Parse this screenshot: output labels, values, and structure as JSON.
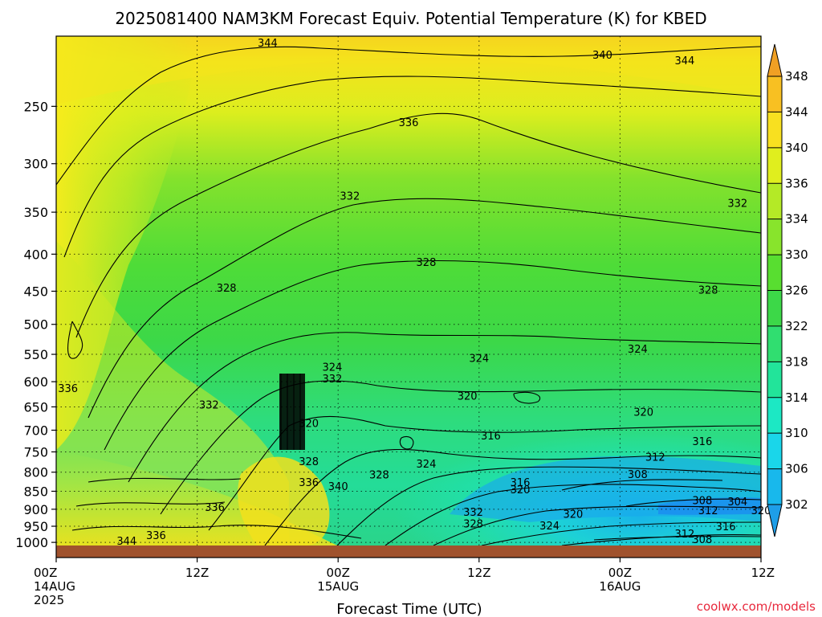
{
  "chart_data": {
    "type": "heatmap",
    "title": "2025081400 NAM3KM Forecast Equiv. Potential Temperature (K) for KBED",
    "xlabel": "Forecast Time (UTC)",
    "credit": "coolwx.com/models",
    "x_ticks": [
      {
        "hour": 0,
        "lines": [
          "00Z",
          "14AUG",
          "2025"
        ]
      },
      {
        "hour": 12,
        "lines": [
          "12Z"
        ]
      },
      {
        "hour": 24,
        "lines": [
          "00Z",
          "15AUG"
        ]
      },
      {
        "hour": 36,
        "lines": [
          "12Z"
        ]
      },
      {
        "hour": 48,
        "lines": [
          "00Z",
          "16AUG"
        ]
      },
      {
        "hour": 60,
        "lines": [
          "12Z"
        ]
      }
    ],
    "xlim": [
      0,
      60
    ],
    "y_ticks": [
      250,
      300,
      350,
      400,
      450,
      500,
      550,
      600,
      650,
      700,
      750,
      800,
      850,
      900,
      950,
      1000
    ],
    "ylim": [
      1010,
      200
    ],
    "y_scale": "log-pressure (inverted)",
    "grid": true,
    "colorbar": {
      "levels": [
        302,
        306,
        310,
        314,
        318,
        322,
        326,
        330,
        334,
        336,
        340,
        344,
        348
      ],
      "colors": [
        "#1e9ee8",
        "#18b8ec",
        "#1ad6ea",
        "#1ce8c4",
        "#22e49a",
        "#30de70",
        "#3cd848",
        "#58de30",
        "#88e42c",
        "#b4ea26",
        "#e0ee1e",
        "#f8e020",
        "#f8c022",
        "#f0a024"
      ],
      "placement": "right",
      "extend": "both"
    },
    "surface_color": "#a0522d",
    "contour_labels": [
      {
        "text": "344",
        "hour": 18.0,
        "p": 204
      },
      {
        "text": "340",
        "hour": 46.5,
        "p": 212
      },
      {
        "text": "344",
        "hour": 53.5,
        "p": 216
      },
      {
        "text": "336",
        "hour": 30.0,
        "p": 263
      },
      {
        "text": "332",
        "hour": 25.0,
        "p": 332
      },
      {
        "text": "332",
        "hour": 58.0,
        "p": 340
      },
      {
        "text": "328",
        "hour": 31.5,
        "p": 410
      },
      {
        "text": "328",
        "hour": 14.5,
        "p": 445
      },
      {
        "text": "328",
        "hour": 55.5,
        "p": 448
      },
      {
        "text": "324",
        "hour": 49.5,
        "p": 540
      },
      {
        "text": "324",
        "hour": 36.0,
        "p": 556
      },
      {
        "text": "324",
        "hour": 23.5,
        "p": 572
      },
      {
        "text": "332",
        "hour": 23.5,
        "p": 594
      },
      {
        "text": "336",
        "hour": 1.0,
        "p": 612
      },
      {
        "text": "320",
        "hour": 35.0,
        "p": 627
      },
      {
        "text": "332",
        "hour": 13.0,
        "p": 645
      },
      {
        "text": "320",
        "hour": 50.0,
        "p": 660
      },
      {
        "text": "320",
        "hour": 21.5,
        "p": 684
      },
      {
        "text": "316",
        "hour": 37.0,
        "p": 712
      },
      {
        "text": "316",
        "hour": 55.0,
        "p": 725
      },
      {
        "text": "312",
        "hour": 51.0,
        "p": 762
      },
      {
        "text": "328",
        "hour": 21.5,
        "p": 772
      },
      {
        "text": "324",
        "hour": 31.5,
        "p": 778
      },
      {
        "text": "308",
        "hour": 49.5,
        "p": 805
      },
      {
        "text": "328",
        "hour": 27.5,
        "p": 806
      },
      {
        "text": "336",
        "hour": 21.5,
        "p": 825
      },
      {
        "text": "316",
        "hour": 39.5,
        "p": 825
      },
      {
        "text": "340",
        "hour": 24.0,
        "p": 836
      },
      {
        "text": "320",
        "hour": 39.5,
        "p": 845
      },
      {
        "text": "308",
        "hour": 55.0,
        "p": 874
      },
      {
        "text": "304",
        "hour": 58.0,
        "p": 878
      },
      {
        "text": "336",
        "hour": 13.5,
        "p": 893
      },
      {
        "text": "312",
        "hour": 55.5,
        "p": 903
      },
      {
        "text": "320",
        "hour": 60.0,
        "p": 903
      },
      {
        "text": "332",
        "hour": 35.5,
        "p": 907
      },
      {
        "text": "320",
        "hour": 44.0,
        "p": 913
      },
      {
        "text": "328",
        "hour": 35.5,
        "p": 942
      },
      {
        "text": "324",
        "hour": 42.0,
        "p": 948
      },
      {
        "text": "316",
        "hour": 57.0,
        "p": 950
      },
      {
        "text": "312",
        "hour": 53.5,
        "p": 972
      },
      {
        "text": "336",
        "hour": 8.5,
        "p": 977
      },
      {
        "text": "308",
        "hour": 55.0,
        "p": 990
      },
      {
        "text": "344",
        "hour": 6.0,
        "p": 995
      }
    ]
  }
}
